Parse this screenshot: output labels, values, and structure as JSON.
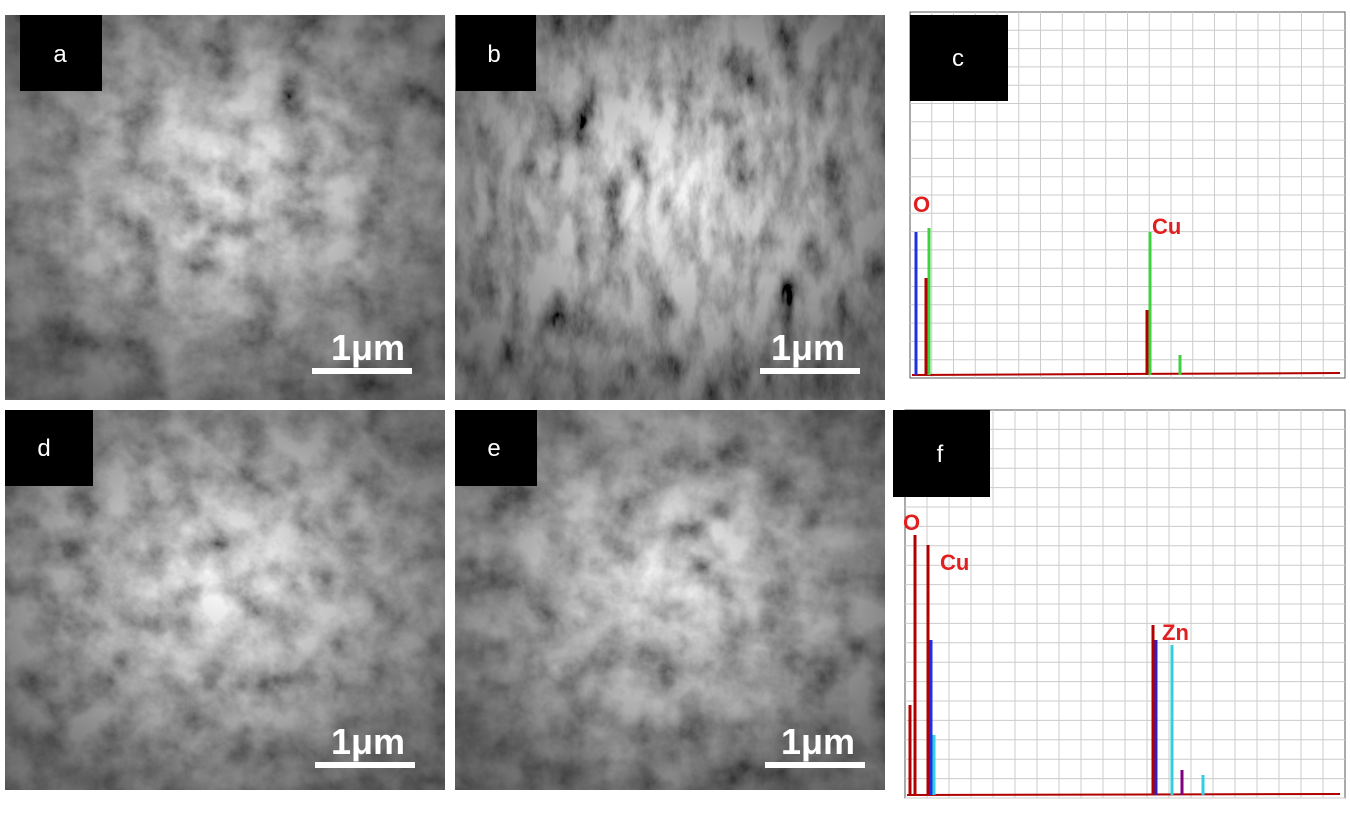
{
  "panels": [
    {
      "label": "a",
      "scale_bar": "1μm"
    },
    {
      "label": "b",
      "scale_bar": "1μm"
    },
    {
      "label": "c",
      "peak_labels": [
        "O",
        "Cu"
      ]
    },
    {
      "label": "d",
      "scale_bar": "1μm"
    },
    {
      "label": "e",
      "scale_bar": "1μm"
    },
    {
      "label": "f",
      "peak_labels": [
        "O",
        "Cu",
        "Zn"
      ]
    }
  ]
}
